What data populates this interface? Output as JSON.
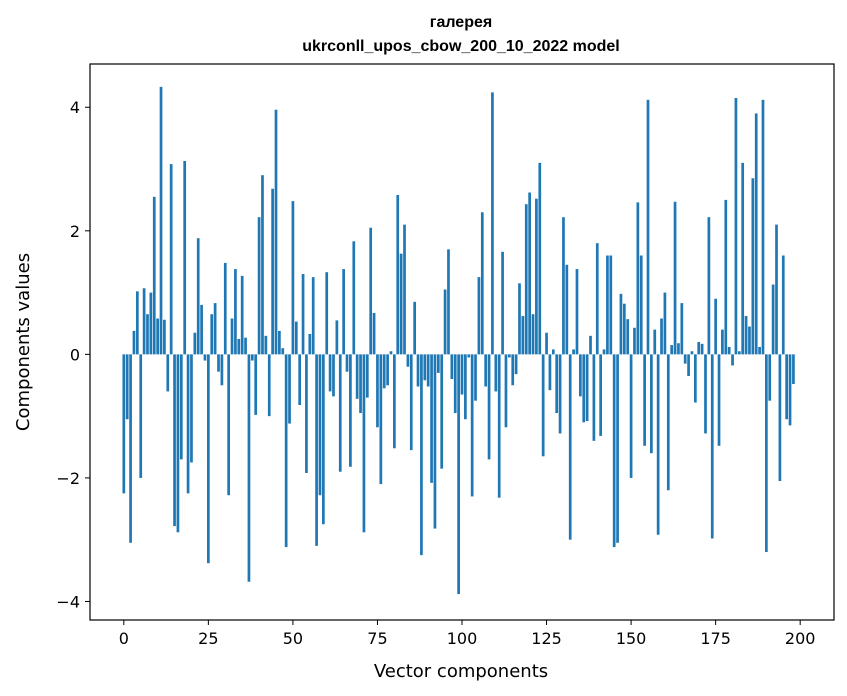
{
  "chart_data": {
    "type": "bar",
    "title": "галерея",
    "subtitle": "ukrconll_upos_cbow_200_10_2022 model",
    "xlabel": "Vector components",
    "ylabel": "Components values",
    "xlim": [
      -10,
      210
    ],
    "ylim": [
      -4.3,
      4.7
    ],
    "xticks": [
      0,
      25,
      50,
      75,
      100,
      125,
      150,
      175,
      200
    ],
    "yticks": [
      -4,
      -2,
      0,
      2,
      4
    ],
    "xtick_labels": [
      "0",
      "25",
      "50",
      "75",
      "100",
      "125",
      "150",
      "175",
      "200"
    ],
    "ytick_labels": [
      "−4",
      "−2",
      "0",
      "2",
      "4"
    ],
    "color": "#1f77b4",
    "grid": false,
    "values": [
      -2.25,
      -1.05,
      -3.05,
      0.38,
      1.02,
      -2.0,
      1.07,
      0.65,
      1.0,
      2.55,
      0.58,
      4.33,
      0.56,
      -0.6,
      3.08,
      -2.78,
      -2.88,
      -1.7,
      3.13,
      -2.25,
      -1.75,
      0.35,
      1.88,
      0.8,
      -0.1,
      -3.38,
      0.65,
      0.83,
      -0.28,
      -0.5,
      1.48,
      -2.28,
      0.58,
      1.38,
      0.25,
      1.27,
      0.27,
      -3.68,
      -0.1,
      -0.98,
      2.22,
      2.9,
      0.3,
      -1.0,
      2.68,
      3.96,
      0.38,
      0.1,
      -3.12,
      -1.12,
      2.48,
      0.53,
      -0.82,
      1.3,
      -1.92,
      0.33,
      1.25,
      -3.1,
      -2.28,
      -2.75,
      1.33,
      -0.6,
      -0.68,
      0.55,
      -1.9,
      1.38,
      -0.28,
      -1.82,
      1.83,
      -0.72,
      -0.95,
      -2.88,
      -0.7,
      2.05,
      0.67,
      -1.18,
      -2.1,
      -0.55,
      -0.5,
      0.05,
      -1.52,
      2.58,
      1.63,
      2.1,
      -0.2,
      -1.55,
      0.85,
      -0.52,
      -3.25,
      -0.42,
      -0.52,
      -2.08,
      -2.82,
      -0.3,
      -1.85,
      1.05,
      1.7,
      -0.4,
      -0.95,
      -3.88,
      -0.65,
      -1.05,
      -0.05,
      -2.3,
      -0.75,
      1.25,
      2.3,
      -0.52,
      -1.7,
      4.24,
      -0.6,
      -2.32,
      1.66,
      -1.18,
      -0.05,
      -0.5,
      -0.32,
      1.15,
      0.62,
      2.43,
      2.62,
      0.65,
      2.52,
      3.1,
      -1.65,
      0.35,
      -0.58,
      0.08,
      -0.95,
      -1.28,
      2.22,
      1.45,
      -3.0,
      0.08,
      1.38,
      -0.68,
      -1.1,
      -1.08,
      0.3,
      -1.4,
      1.8,
      -1.32,
      0.08,
      1.6,
      1.6,
      -3.12,
      -3.05,
      0.98,
      0.82,
      0.57,
      -2.0,
      0.43,
      2.46,
      1.6,
      -1.48,
      4.12,
      -1.6,
      0.4,
      -2.92,
      0.58,
      1.0,
      -2.2,
      0.15,
      2.47,
      0.18,
      0.83,
      -0.15,
      -0.35,
      0.05,
      -0.78,
      0.2,
      0.17,
      -1.28,
      2.22,
      -2.98,
      0.9,
      -1.48,
      0.4,
      2.5,
      0.12,
      -0.18,
      4.15,
      0.05,
      3.1,
      0.62,
      0.45,
      2.85,
      3.9,
      0.12,
      4.12,
      -3.2,
      -0.75,
      1.13,
      2.1,
      -2.05,
      1.6,
      -1.05,
      -1.15,
      -0.48
    ]
  }
}
